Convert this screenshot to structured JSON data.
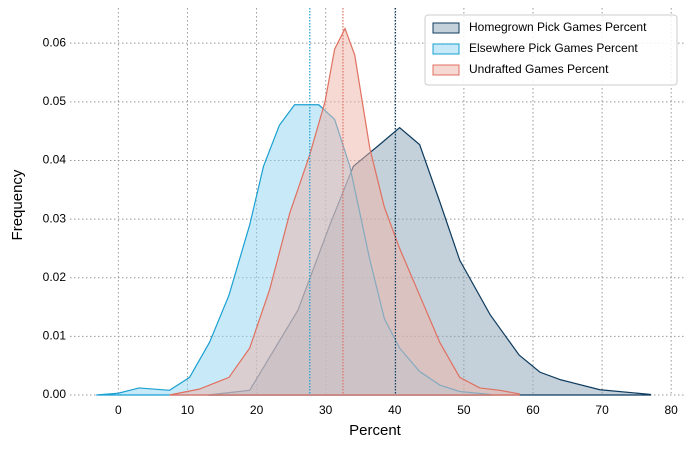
{
  "chart_data": {
    "type": "kde",
    "xlabel": "Percent",
    "ylabel": "Frequency",
    "xlim": [
      -7,
      82
    ],
    "ylim": [
      0,
      0.066
    ],
    "xticks": [
      0,
      10,
      20,
      30,
      40,
      50,
      60,
      70,
      80
    ],
    "yticks": [
      {
        "value": 0,
        "label": "0.00"
      },
      {
        "value": 0.01,
        "label": "0.01"
      },
      {
        "value": 0.02,
        "label": "0.02"
      },
      {
        "value": 0.03,
        "label": "0.03"
      },
      {
        "value": 0.04,
        "label": "0.04"
      },
      {
        "value": 0.05,
        "label": "0.05"
      },
      {
        "value": 0.06,
        "label": "0.06"
      }
    ],
    "grid": true,
    "legend": "upper right",
    "series": [
      {
        "name": "Homegrown Pick Games Percent",
        "color": "#0d3b5e",
        "fill": "#8aa2b5",
        "mean": 40.1,
        "x": [
          13,
          19,
          26,
          30.6,
          34,
          37.8,
          40.7,
          43.6,
          46.5,
          49.4,
          53.8,
          58,
          61,
          64,
          69.7,
          77
        ],
        "values": [
          0,
          0.0008,
          0.0145,
          0.029,
          0.039,
          0.0427,
          0.0456,
          0.0427,
          0.033,
          0.023,
          0.0137,
          0.0068,
          0.0039,
          0.0026,
          0.0009,
          0.0001
        ]
      },
      {
        "name": "Elsewhere Pick Games Percent",
        "color": "#1aa0d2",
        "fill": "#8fd3f1",
        "mean": 27.7,
        "x": [
          -3.2,
          0,
          3,
          7.4,
          10.3,
          13.2,
          16,
          19,
          21,
          23.3,
          25.5,
          29,
          31.3,
          33.5,
          36.4,
          38.5,
          40.7,
          43.6,
          46.5,
          49.4,
          53.8
        ],
        "values": [
          0,
          0.0003,
          0.0012,
          0.0008,
          0.003,
          0.009,
          0.017,
          0.029,
          0.039,
          0.046,
          0.0495,
          0.0495,
          0.047,
          0.039,
          0.023,
          0.013,
          0.008,
          0.004,
          0.0017,
          0.0006,
          0.0001
        ]
      },
      {
        "name": "Undrafted Games Percent",
        "color": "#e07060",
        "fill": "#f0b4a8",
        "mean": 32.5,
        "x": [
          7.4,
          11.7,
          16,
          19,
          21.9,
          24.8,
          27.7,
          29.9,
          31.3,
          32.8,
          34.2,
          36.4,
          38.5,
          40.7,
          43.6,
          46.5,
          49.4,
          52.3,
          55.2,
          58
        ],
        "values": [
          0,
          0.001,
          0.003,
          0.008,
          0.018,
          0.031,
          0.041,
          0.05,
          0.059,
          0.0625,
          0.058,
          0.042,
          0.032,
          0.025,
          0.017,
          0.009,
          0.003,
          0.0012,
          0.0008,
          0.0002
        ]
      }
    ]
  }
}
